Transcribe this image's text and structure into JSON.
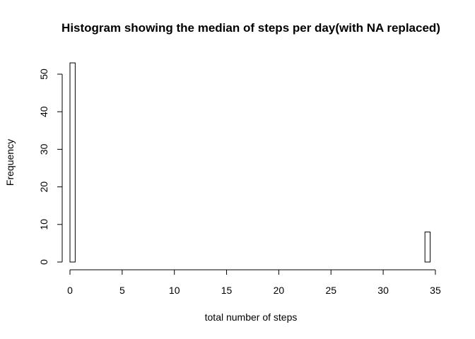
{
  "chart_data": {
    "type": "bar",
    "title": "Histogram showing the median of steps per day(with NA replaced)",
    "xlabel": "total number of steps",
    "ylabel": "Frequency",
    "bin_width": 0.5,
    "bins": [
      {
        "x0": 0.0,
        "x1": 0.5,
        "count": 53
      },
      {
        "x0": 34.0,
        "x1": 34.5,
        "count": 8
      }
    ],
    "xlim": [
      0,
      35
    ],
    "ylim": [
      0,
      53
    ],
    "xticks": [
      0,
      5,
      10,
      15,
      20,
      25,
      30,
      35
    ],
    "yticks": [
      0,
      10,
      20,
      30,
      40,
      50
    ],
    "grid": false,
    "legend": "none"
  }
}
